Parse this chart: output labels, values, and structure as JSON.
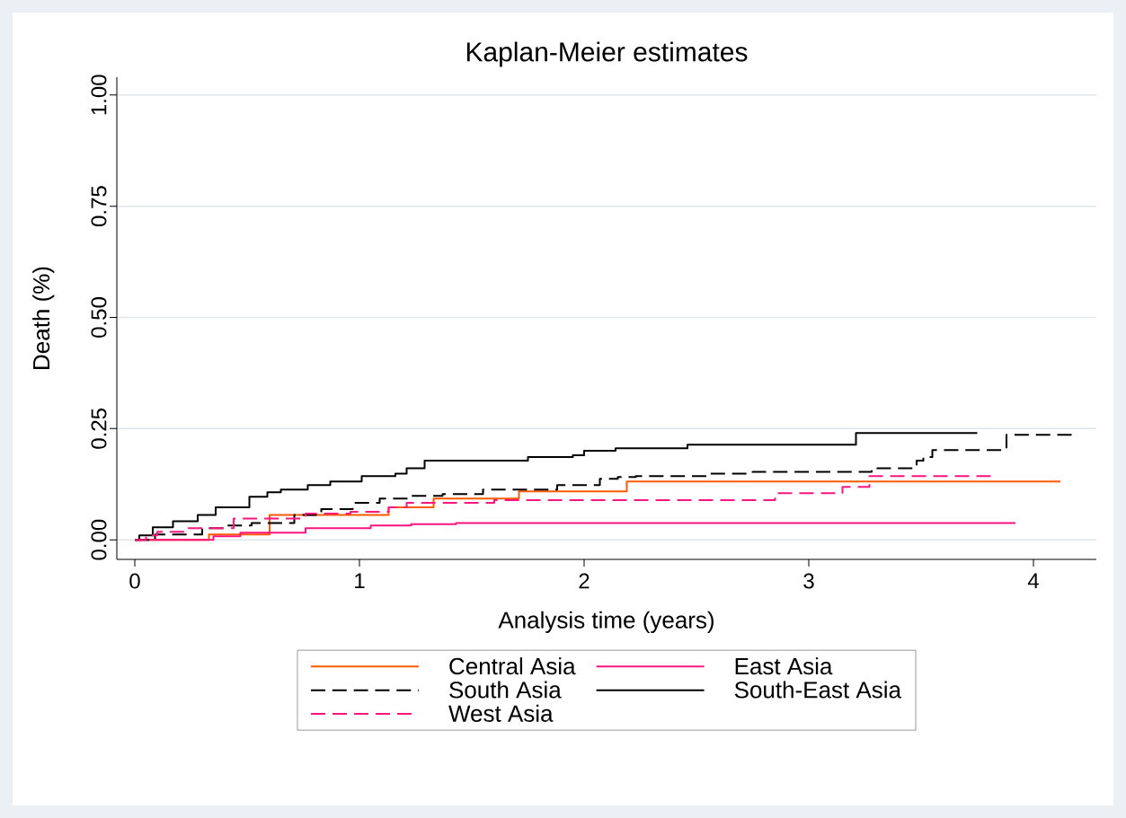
{
  "chart_data": {
    "type": "step",
    "title": "Kaplan-Meier estimates",
    "xlabel": "Analysis time (years)",
    "ylabel": "Death (%)",
    "xlim": [
      -0.08,
      4.28
    ],
    "ylim": [
      -0.044,
      1.04
    ],
    "xticks": [
      0,
      1,
      2,
      3,
      4
    ],
    "yticks": [
      {
        "value": 0,
        "label": "0.00"
      },
      {
        "value": 0.25,
        "label": "0.25"
      },
      {
        "value": 0.5,
        "label": "0.50"
      },
      {
        "value": 0.75,
        "label": "0.75"
      },
      {
        "value": 1,
        "label": "1.00"
      }
    ],
    "grid": "y",
    "legend": "bottom",
    "marker": "none",
    "series": [
      {
        "name": "Central Asia",
        "color": "#ff5a00",
        "line_style": "solid",
        "x": [
          0,
          0.33,
          0.6,
          1.13,
          1.33,
          1.71,
          2.19,
          4.12
        ],
        "values": [
          0,
          0.012,
          0.056,
          0.073,
          0.093,
          0.109,
          0.131,
          0.131
        ]
      },
      {
        "name": "East Asia",
        "color": "#ff1480",
        "line_style": "solid",
        "x": [
          0,
          0.35,
          0.47,
          0.76,
          1.05,
          1.23,
          1.43,
          3.92
        ],
        "values": [
          0,
          0.008,
          0.016,
          0.026,
          0.032,
          0.035,
          0.038,
          0.038
        ]
      },
      {
        "name": "South Asia",
        "color": "#000000",
        "line_style": "dashed",
        "x": [
          0,
          0.09,
          0.3,
          0.4,
          0.52,
          0.71,
          0.83,
          0.97,
          1.09,
          1.23,
          1.37,
          1.55,
          1.88,
          2.07,
          2.15,
          2.23,
          2.55,
          2.75,
          3.28,
          3.48,
          3.51,
          3.55,
          3.88,
          4.17
        ],
        "values": [
          0,
          0.012,
          0.026,
          0.032,
          0.038,
          0.056,
          0.069,
          0.083,
          0.093,
          0.099,
          0.103,
          0.113,
          0.123,
          0.137,
          0.141,
          0.143,
          0.149,
          0.153,
          0.161,
          0.178,
          0.186,
          0.202,
          0.236,
          0.236
        ]
      },
      {
        "name": "South-East Asia",
        "color": "#000000",
        "line_style": "solid",
        "x": [
          0,
          0.02,
          0.08,
          0.17,
          0.28,
          0.36,
          0.51,
          0.59,
          0.65,
          0.77,
          0.87,
          1.01,
          1.16,
          1.21,
          1.29,
          1.75,
          1.95,
          2.0,
          2.14,
          2.46,
          3.21,
          3.75
        ],
        "values": [
          0,
          0.01,
          0.028,
          0.042,
          0.056,
          0.073,
          0.097,
          0.107,
          0.113,
          0.123,
          0.131,
          0.143,
          0.149,
          0.161,
          0.178,
          0.186,
          0.19,
          0.2,
          0.206,
          0.214,
          0.24,
          0.24
        ]
      },
      {
        "name": "West Asia",
        "color": "#ff1480",
        "line_style": "dashed",
        "x": [
          0,
          0.05,
          0.1,
          0.23,
          0.44,
          0.76,
          0.96,
          1.13,
          1.21,
          1.6,
          2.85,
          3.15,
          3.27,
          3.81
        ],
        "values": [
          0,
          0.01,
          0.018,
          0.026,
          0.048,
          0.059,
          0.063,
          0.073,
          0.083,
          0.089,
          0.105,
          0.119,
          0.143,
          0.143
        ]
      }
    ]
  }
}
